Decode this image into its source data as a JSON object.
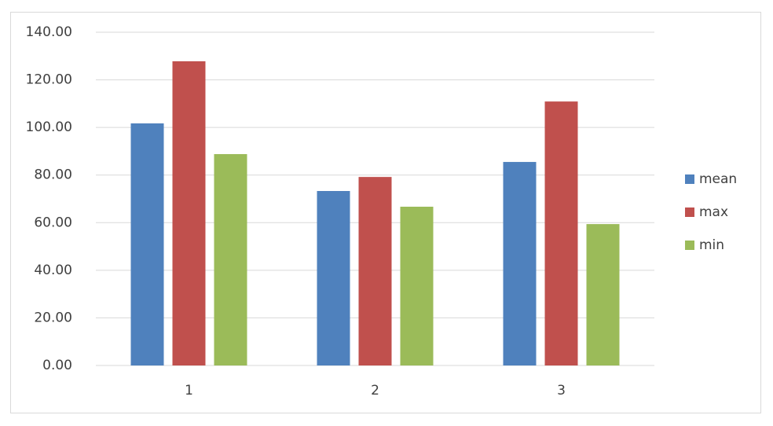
{
  "chart_data": {
    "type": "bar",
    "categories": [
      "1",
      "2",
      "3"
    ],
    "series": [
      {
        "name": "mean",
        "color": "#4f81bd",
        "values": [
          101.7,
          73.3,
          85.5
        ]
      },
      {
        "name": "max",
        "color": "#c0504d",
        "values": [
          127.8,
          79.2,
          110.9
        ]
      },
      {
        "name": "min",
        "color": "#9bbb59",
        "values": [
          88.8,
          66.7,
          59.4
        ]
      }
    ],
    "ylim": [
      0,
      140
    ],
    "yticks": [
      {
        "value": 0,
        "label": "0.00"
      },
      {
        "value": 20,
        "label": "20.00"
      },
      {
        "value": 40,
        "label": "40.00"
      },
      {
        "value": 60,
        "label": "60.00"
      },
      {
        "value": 80,
        "label": "80.00"
      },
      {
        "value": 100,
        "label": "100.00"
      },
      {
        "value": 120,
        "label": "120.00"
      },
      {
        "value": 140,
        "label": "140.00"
      }
    ],
    "grid": true,
    "legend": "right"
  }
}
